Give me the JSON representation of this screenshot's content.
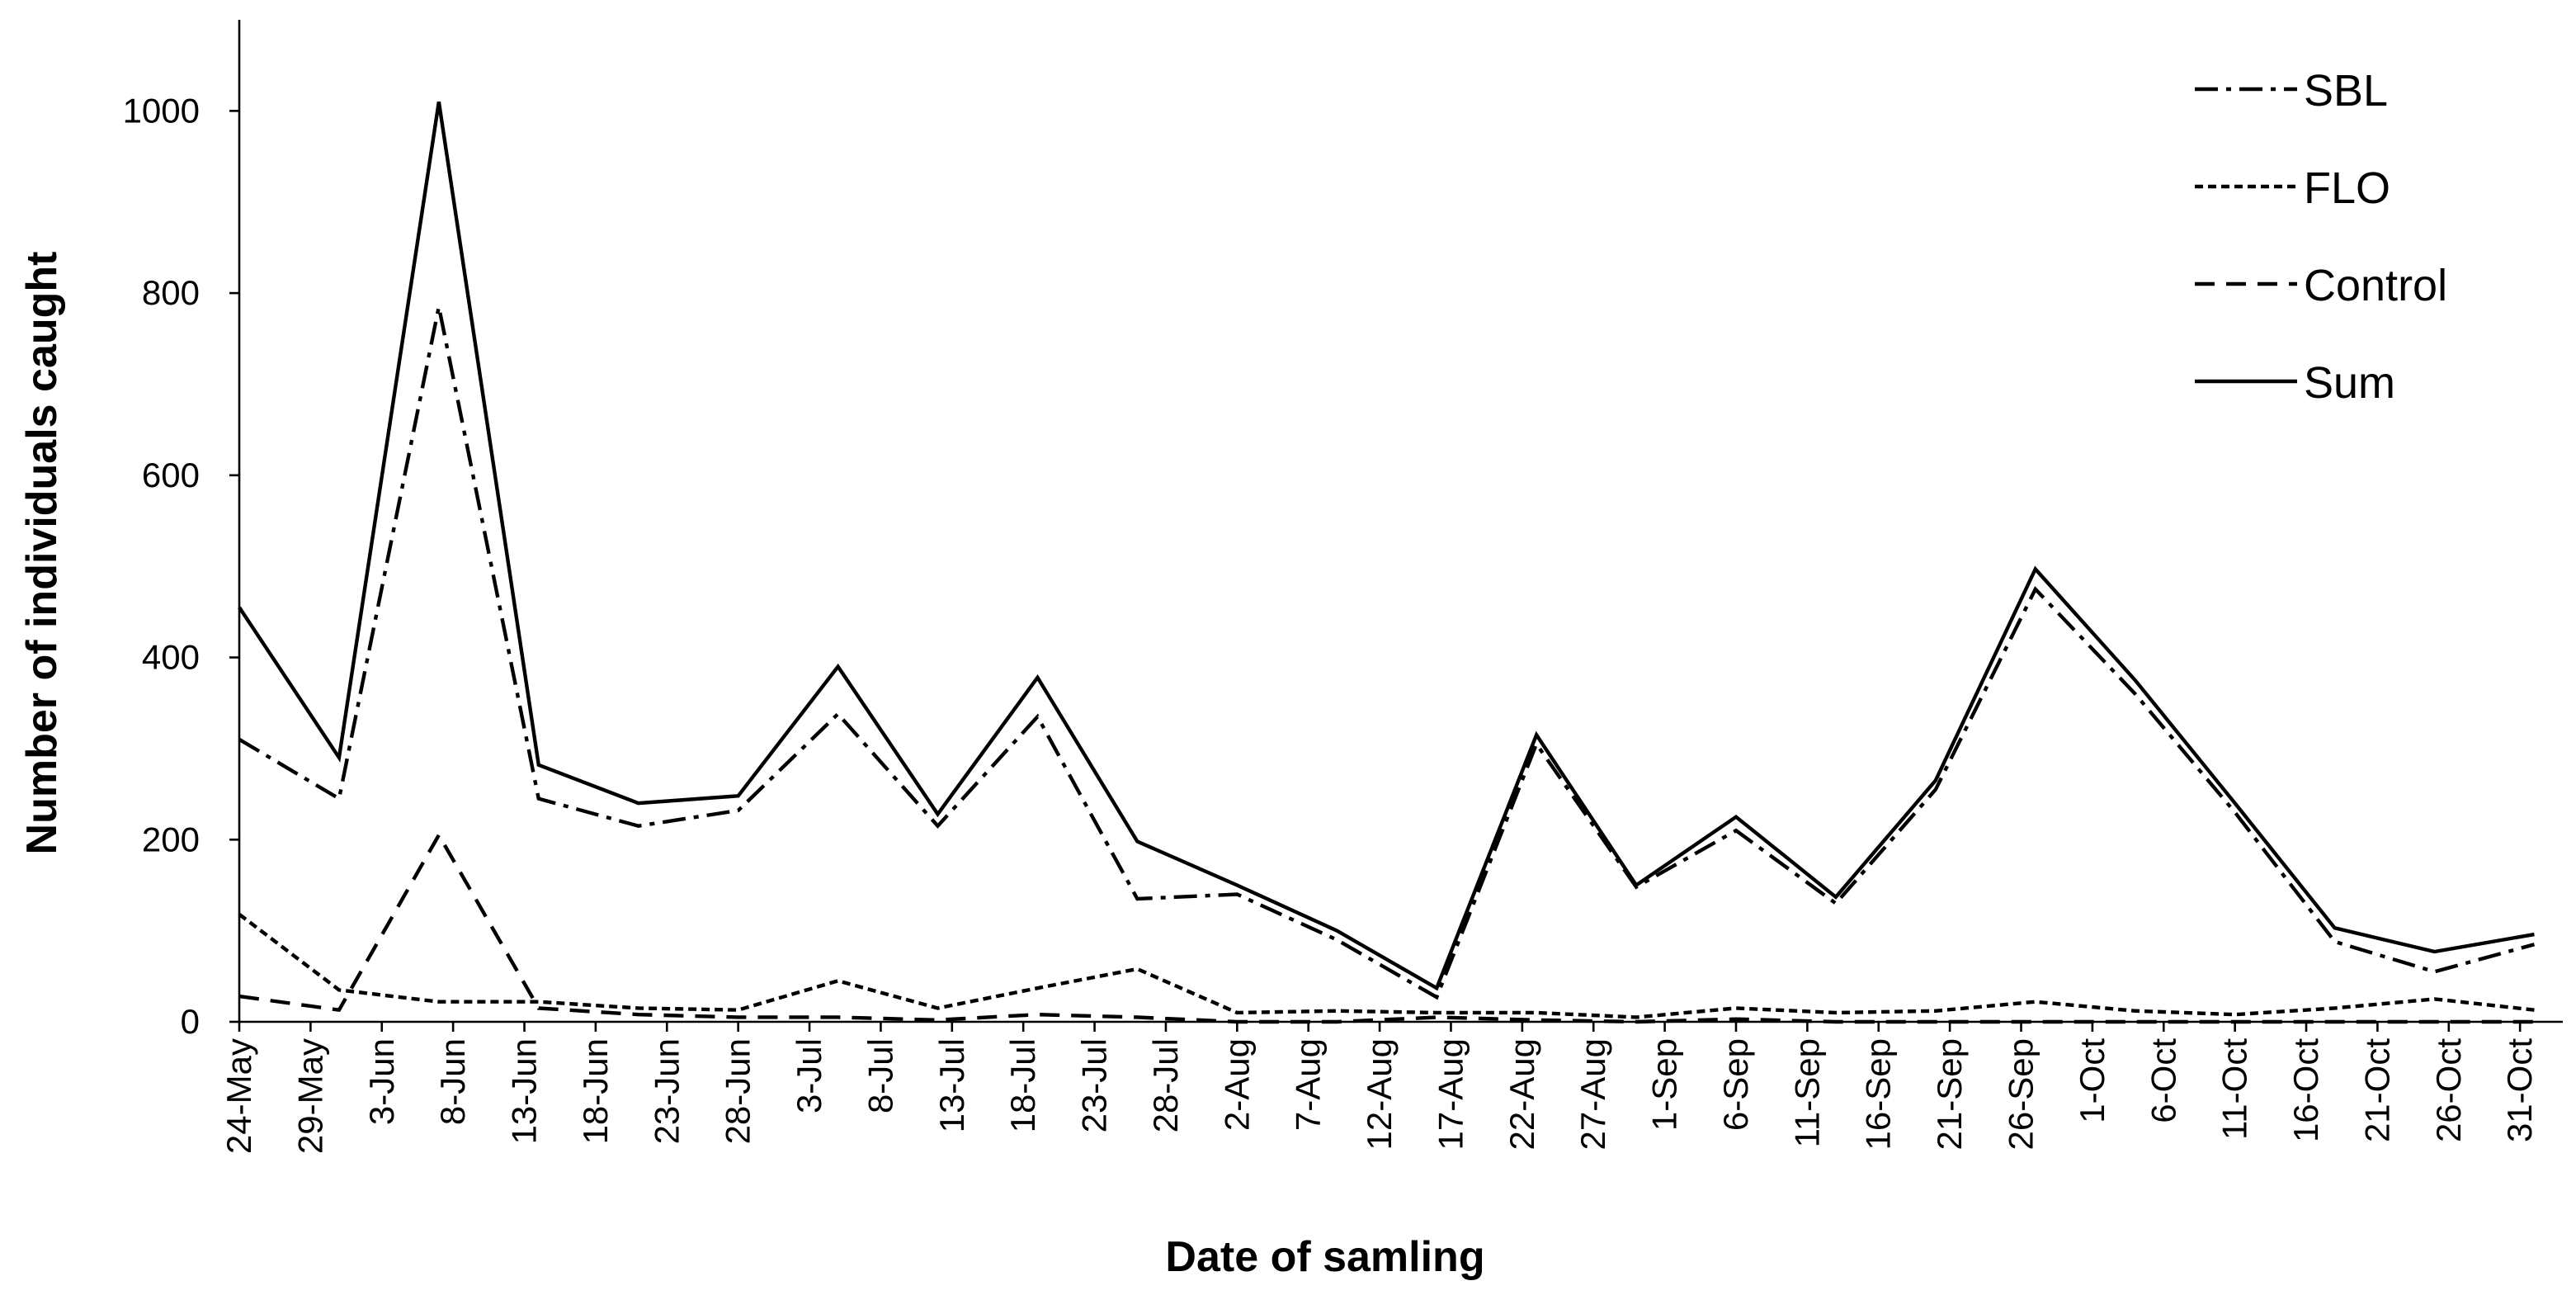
{
  "chart_data": {
    "type": "line",
    "xlabel": "Date of samling",
    "ylabel": "Number of individuals caught",
    "x": [
      0,
      7,
      14,
      21,
      28,
      35,
      42,
      49,
      56,
      63,
      70,
      77,
      84,
      91,
      98,
      105,
      112,
      119,
      126,
      133,
      140,
      147,
      154,
      161
    ],
    "series": [
      {
        "name": "SBL",
        "color": "#000000",
        "dash": "14 5 3 5",
        "values": [
          310,
          245,
          785,
          245,
          215,
          232,
          338,
          215,
          335,
          135,
          140,
          90,
          27,
          305,
          148,
          210,
          130,
          255,
          475,
          360,
          230,
          88,
          55,
          85
        ]
      },
      {
        "name": "FLO",
        "color": "#000000",
        "dash": "5 3",
        "values": [
          118,
          35,
          22,
          22,
          15,
          13,
          45,
          15,
          37,
          58,
          10,
          12,
          10,
          10,
          5,
          15,
          10,
          12,
          22,
          12,
          8,
          15,
          25,
          13
        ]
      },
      {
        "name": "Control",
        "color": "#000000",
        "dash": "12 7",
        "values": [
          28,
          13,
          205,
          15,
          8,
          5,
          5,
          2,
          8,
          5,
          0,
          0,
          5,
          2,
          0,
          3,
          0,
          0,
          0,
          0,
          0,
          0,
          0,
          0
        ]
      },
      {
        "name": "Sum",
        "color": "#000000",
        "dash": "",
        "values": [
          455,
          290,
          1010,
          282,
          240,
          248,
          390,
          228,
          378,
          198,
          150,
          100,
          37,
          315,
          150,
          225,
          137,
          265,
          497,
          375,
          240,
          103,
          77,
          96
        ]
      }
    ],
    "xlim": [
      0,
      163
    ],
    "xticks": [
      {
        "value": 0,
        "label": "24-May"
      },
      {
        "value": 5,
        "label": "29-May"
      },
      {
        "value": 10,
        "label": "3-Jun"
      },
      {
        "value": 15,
        "label": "8-Jun"
      },
      {
        "value": 20,
        "label": "13-Jun"
      },
      {
        "value": 25,
        "label": "18-Jun"
      },
      {
        "value": 30,
        "label": "23-Jun"
      },
      {
        "value": 35,
        "label": "28-Jun"
      },
      {
        "value": 40,
        "label": "3-Jul"
      },
      {
        "value": 45,
        "label": "8-Jul"
      },
      {
        "value": 50,
        "label": "13-Jul"
      },
      {
        "value": 55,
        "label": "18-Jul"
      },
      {
        "value": 60,
        "label": "23-Jul"
      },
      {
        "value": 65,
        "label": "28-Jul"
      },
      {
        "value": 70,
        "label": "2-Aug"
      },
      {
        "value": 75,
        "label": "7-Aug"
      },
      {
        "value": 80,
        "label": "12-Aug"
      },
      {
        "value": 85,
        "label": "17-Aug"
      },
      {
        "value": 90,
        "label": "22-Aug"
      },
      {
        "value": 95,
        "label": "27-Aug"
      },
      {
        "value": 100,
        "label": "1-Sep"
      },
      {
        "value": 105,
        "label": "6-Sep"
      },
      {
        "value": 110,
        "label": "11-Sep"
      },
      {
        "value": 115,
        "label": "16-Sep"
      },
      {
        "value": 120,
        "label": "21-Sep"
      },
      {
        "value": 125,
        "label": "26-Sep"
      },
      {
        "value": 130,
        "label": "1-Oct"
      },
      {
        "value": 135,
        "label": "6-Oct"
      },
      {
        "value": 140,
        "label": "11-Oct"
      },
      {
        "value": 145,
        "label": "16-Oct"
      },
      {
        "value": 150,
        "label": "21-Oct"
      },
      {
        "value": 155,
        "label": "26-Oct"
      },
      {
        "value": 160,
        "label": "31-Oct"
      }
    ],
    "ylim": [
      0,
      1100
    ],
    "yticks": [
      0,
      200,
      400,
      600,
      800,
      1000
    ],
    "legend": "upper right"
  }
}
